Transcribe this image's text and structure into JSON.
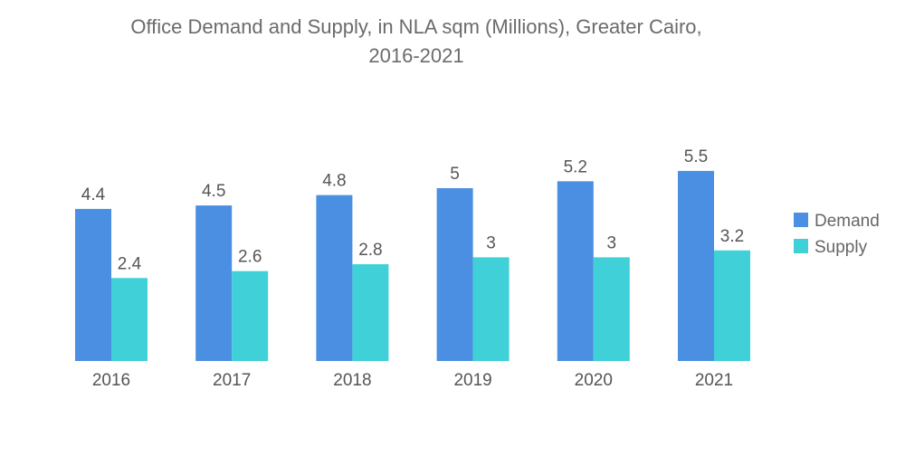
{
  "chart_data": {
    "type": "bar",
    "title_line1": "Office Demand and Supply, in NLA sqm (Millions), Greater Cairo,",
    "title_line2": "2016-2021",
    "categories": [
      "2016",
      "2017",
      "2018",
      "2019",
      "2020",
      "2021"
    ],
    "series": [
      {
        "name": "Demand",
        "color": "#4a8fe2",
        "values": [
          4.4,
          4.5,
          4.8,
          5,
          5.2,
          5.5
        ]
      },
      {
        "name": "Supply",
        "color": "#3fd0d8",
        "values": [
          2.4,
          2.6,
          2.8,
          3,
          3,
          3.2
        ]
      }
    ],
    "ylim": [
      0,
      5.5
    ],
    "grid": false,
    "legend": "right"
  }
}
